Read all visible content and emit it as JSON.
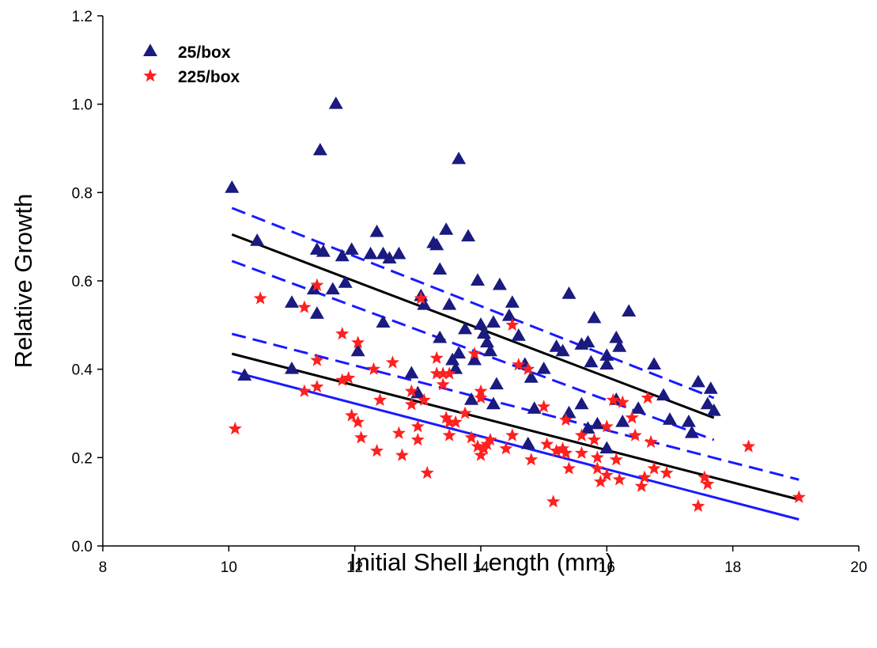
{
  "chart_data": {
    "type": "scatter",
    "xlabel": "Initial Shell Length (mm)",
    "ylabel": "Relative Growth",
    "xlim": [
      8,
      20
    ],
    "ylim": [
      0.0,
      1.2
    ],
    "x_ticks": [
      "8",
      "10",
      "12",
      "14",
      "16",
      "18",
      "20"
    ],
    "y_ticks": [
      "0.0",
      "0.2",
      "0.4",
      "0.6",
      "0.8",
      "1.0",
      "1.2"
    ],
    "grid": false,
    "legend_position": "top-left",
    "series": [
      {
        "name": "25/box",
        "marker": "triangle",
        "color": "#1a1a80",
        "points": [
          [
            10.05,
            0.81
          ],
          [
            10.25,
            0.385
          ],
          [
            10.45,
            0.69
          ],
          [
            11.0,
            0.55
          ],
          [
            11.0,
            0.4
          ],
          [
            11.35,
            0.58
          ],
          [
            11.4,
            0.67
          ],
          [
            11.4,
            0.525
          ],
          [
            11.45,
            0.895
          ],
          [
            11.5,
            0.665
          ],
          [
            11.65,
            0.58
          ],
          [
            11.7,
            1.0
          ],
          [
            11.8,
            0.655
          ],
          [
            11.85,
            0.595
          ],
          [
            11.95,
            0.67
          ],
          [
            12.05,
            0.44
          ],
          [
            12.25,
            0.66
          ],
          [
            12.35,
            0.71
          ],
          [
            12.45,
            0.66
          ],
          [
            12.45,
            0.505
          ],
          [
            12.55,
            0.65
          ],
          [
            12.7,
            0.66
          ],
          [
            12.9,
            0.39
          ],
          [
            13.0,
            0.345
          ],
          [
            13.05,
            0.565
          ],
          [
            13.1,
            0.545
          ],
          [
            13.25,
            0.685
          ],
          [
            13.3,
            0.68
          ],
          [
            13.35,
            0.625
          ],
          [
            13.35,
            0.47
          ],
          [
            13.45,
            0.715
          ],
          [
            13.5,
            0.545
          ],
          [
            13.55,
            0.42
          ],
          [
            13.6,
            0.4
          ],
          [
            13.65,
            0.875
          ],
          [
            13.65,
            0.435
          ],
          [
            13.75,
            0.49
          ],
          [
            13.8,
            0.7
          ],
          [
            13.85,
            0.33
          ],
          [
            13.9,
            0.42
          ],
          [
            13.95,
            0.6
          ],
          [
            14.0,
            0.5
          ],
          [
            14.05,
            0.48
          ],
          [
            14.1,
            0.46
          ],
          [
            14.15,
            0.44
          ],
          [
            14.2,
            0.505
          ],
          [
            14.2,
            0.32
          ],
          [
            14.25,
            0.365
          ],
          [
            14.3,
            0.59
          ],
          [
            14.45,
            0.52
          ],
          [
            14.5,
            0.55
          ],
          [
            14.6,
            0.475
          ],
          [
            14.7,
            0.41
          ],
          [
            14.75,
            0.23
          ],
          [
            14.8,
            0.38
          ],
          [
            14.85,
            0.31
          ],
          [
            15.0,
            0.4
          ],
          [
            15.2,
            0.45
          ],
          [
            15.3,
            0.44
          ],
          [
            15.4,
            0.57
          ],
          [
            15.4,
            0.3
          ],
          [
            15.6,
            0.455
          ],
          [
            15.6,
            0.32
          ],
          [
            15.7,
            0.46
          ],
          [
            15.7,
            0.265
          ],
          [
            15.75,
            0.415
          ],
          [
            15.8,
            0.515
          ],
          [
            15.85,
            0.275
          ],
          [
            16.0,
            0.43
          ],
          [
            16.0,
            0.41
          ],
          [
            16.0,
            0.22
          ],
          [
            16.15,
            0.47
          ],
          [
            16.15,
            0.33
          ],
          [
            16.2,
            0.45
          ],
          [
            16.25,
            0.28
          ],
          [
            16.35,
            0.53
          ],
          [
            16.5,
            0.31
          ],
          [
            16.75,
            0.41
          ],
          [
            16.9,
            0.34
          ],
          [
            17.0,
            0.285
          ],
          [
            17.3,
            0.28
          ],
          [
            17.35,
            0.255
          ],
          [
            17.45,
            0.37
          ],
          [
            17.6,
            0.32
          ],
          [
            17.65,
            0.355
          ],
          [
            17.7,
            0.305
          ]
        ]
      },
      {
        "name": "225/box",
        "marker": "star",
        "color": "#ff2020",
        "points": [
          [
            10.1,
            0.265
          ],
          [
            10.5,
            0.56
          ],
          [
            11.2,
            0.54
          ],
          [
            11.2,
            0.35
          ],
          [
            11.4,
            0.59
          ],
          [
            11.4,
            0.42
          ],
          [
            11.4,
            0.36
          ],
          [
            11.8,
            0.48
          ],
          [
            11.8,
            0.375
          ],
          [
            11.9,
            0.38
          ],
          [
            11.95,
            0.295
          ],
          [
            12.05,
            0.46
          ],
          [
            12.05,
            0.28
          ],
          [
            12.1,
            0.245
          ],
          [
            12.3,
            0.4
          ],
          [
            12.35,
            0.215
          ],
          [
            12.4,
            0.33
          ],
          [
            12.6,
            0.415
          ],
          [
            12.7,
            0.255
          ],
          [
            12.75,
            0.205
          ],
          [
            12.9,
            0.35
          ],
          [
            12.9,
            0.32
          ],
          [
            13.0,
            0.27
          ],
          [
            13.0,
            0.24
          ],
          [
            13.05,
            0.56
          ],
          [
            13.1,
            0.33
          ],
          [
            13.15,
            0.165
          ],
          [
            13.3,
            0.425
          ],
          [
            13.3,
            0.39
          ],
          [
            13.4,
            0.39
          ],
          [
            13.4,
            0.365
          ],
          [
            13.45,
            0.29
          ],
          [
            13.5,
            0.39
          ],
          [
            13.5,
            0.28
          ],
          [
            13.5,
            0.25
          ],
          [
            13.6,
            0.28
          ],
          [
            13.75,
            0.3
          ],
          [
            13.85,
            0.245
          ],
          [
            13.9,
            0.435
          ],
          [
            13.95,
            0.225
          ],
          [
            14.0,
            0.35
          ],
          [
            14.0,
            0.335
          ],
          [
            14.0,
            0.205
          ],
          [
            14.05,
            0.22
          ],
          [
            14.1,
            0.23
          ],
          [
            14.15,
            0.24
          ],
          [
            14.4,
            0.22
          ],
          [
            14.5,
            0.5
          ],
          [
            14.5,
            0.25
          ],
          [
            14.6,
            0.41
          ],
          [
            14.75,
            0.4
          ],
          [
            14.8,
            0.195
          ],
          [
            15.0,
            0.315
          ],
          [
            15.05,
            0.23
          ],
          [
            15.15,
            0.1
          ],
          [
            15.2,
            0.215
          ],
          [
            15.3,
            0.22
          ],
          [
            15.35,
            0.285
          ],
          [
            15.35,
            0.21
          ],
          [
            15.4,
            0.175
          ],
          [
            15.6,
            0.25
          ],
          [
            15.6,
            0.21
          ],
          [
            15.8,
            0.24
          ],
          [
            15.85,
            0.2
          ],
          [
            15.85,
            0.175
          ],
          [
            15.9,
            0.145
          ],
          [
            16.0,
            0.27
          ],
          [
            16.0,
            0.16
          ],
          [
            16.1,
            0.33
          ],
          [
            16.15,
            0.195
          ],
          [
            16.2,
            0.15
          ],
          [
            16.25,
            0.325
          ],
          [
            16.4,
            0.29
          ],
          [
            16.45,
            0.25
          ],
          [
            16.55,
            0.135
          ],
          [
            16.6,
            0.155
          ],
          [
            16.65,
            0.335
          ],
          [
            16.7,
            0.235
          ],
          [
            16.75,
            0.175
          ],
          [
            16.95,
            0.165
          ],
          [
            17.45,
            0.09
          ],
          [
            17.55,
            0.155
          ],
          [
            17.6,
            0.14
          ],
          [
            18.25,
            0.225
          ],
          [
            19.05,
            0.11
          ]
        ]
      }
    ],
    "lines": [
      {
        "role": "regression",
        "color": "#000000",
        "dash": false,
        "points": [
          [
            10.05,
            0.705
          ],
          [
            17.7,
            0.29
          ]
        ]
      },
      {
        "role": "confidence-upper",
        "color": "#1a1aff",
        "dash": true,
        "points": [
          [
            10.05,
            0.765
          ],
          [
            17.7,
            0.335
          ]
        ]
      },
      {
        "role": "confidence-lower",
        "color": "#1a1aff",
        "dash": true,
        "points": [
          [
            10.05,
            0.645
          ],
          [
            17.7,
            0.24
          ]
        ]
      },
      {
        "role": "regression",
        "color": "#000000",
        "dash": false,
        "points": [
          [
            10.05,
            0.435
          ],
          [
            19.05,
            0.105
          ]
        ]
      },
      {
        "role": "confidence-upper",
        "color": "#1a1aff",
        "dash": true,
        "points": [
          [
            10.05,
            0.48
          ],
          [
            19.05,
            0.15
          ]
        ]
      },
      {
        "role": "confidence-lower",
        "color": "#1a1aff",
        "dash": false,
        "points": [
          [
            10.05,
            0.395
          ],
          [
            19.05,
            0.06
          ]
        ]
      }
    ]
  }
}
